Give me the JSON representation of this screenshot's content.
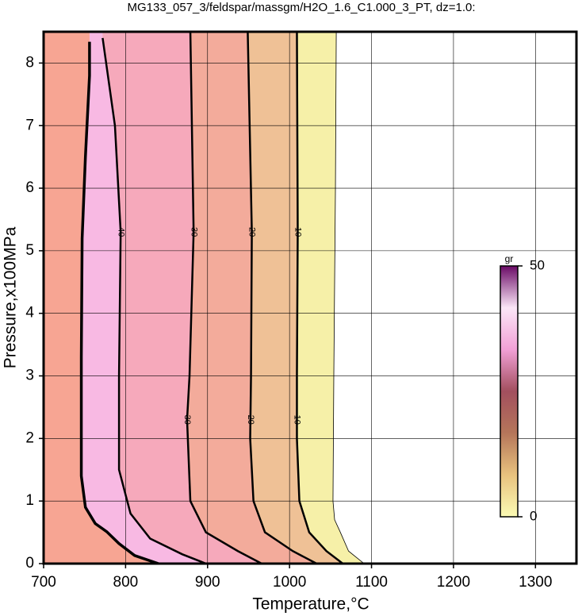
{
  "chart_data": {
    "type": "contour",
    "title": "MG133_057_3/feldspar/massgm/H2O_1.6_C1.000_3_PT, dz=1.0:",
    "xlabel": "Temperature,°C",
    "ylabel": "Pressure,x100MPa",
    "xlim": [
      700,
      1350
    ],
    "ylim": [
      0,
      8.5
    ],
    "xticks": [
      700,
      800,
      900,
      1000,
      1100,
      1200,
      1300
    ],
    "yticks": [
      0,
      1,
      2,
      3,
      4,
      5,
      6,
      7,
      8
    ],
    "grid": true,
    "background_color": "#f7a593",
    "contours": [
      {
        "level": 0,
        "color": "#f6f0a8",
        "x": [
          1057,
          1056,
          1054,
          1053,
          1055,
          1062,
          1072,
          1091
        ],
        "y": [
          8.5,
          6,
          3,
          1,
          0.7,
          0.5,
          0.2,
          0
        ]
      },
      {
        "level": 10,
        "color": "#efc196",
        "x": [
          1009,
          1010,
          1009,
          1009,
          1012,
          1024,
          1045,
          1065
        ],
        "y": [
          8.5,
          5.3,
          3,
          2,
          1,
          0.5,
          0.2,
          0
        ]
      },
      {
        "level": 20,
        "color": "#f3ab9b",
        "x": [
          949,
          954,
          953,
          952,
          956,
          970,
          1004,
          1033
        ],
        "y": [
          8.5,
          5.3,
          3,
          2,
          1,
          0.5,
          0.2,
          0
        ]
      },
      {
        "level": 30,
        "color": "#f6a9bb",
        "x": [
          879,
          883,
          878,
          875,
          879,
          898,
          937,
          966
        ],
        "y": [
          8.5,
          5.3,
          3,
          2.3,
          1,
          0.5,
          0.2,
          0
        ]
      },
      {
        "level": 40,
        "color": "#f8b9e3",
        "x": [
          772,
          787,
          794,
          792,
          792,
          806,
          830,
          869,
          898
        ],
        "y": [
          8.4,
          7,
          5.3,
          3,
          1.5,
          0.8,
          0.4,
          0.15,
          0
        ]
      },
      {
        "level": 50,
        "color": "#f7a593",
        "x": [
          756,
          756,
          751,
          747,
          746,
          746,
          751,
          763,
          777,
          792,
          811,
          840
        ],
        "y": [
          8.34,
          7.8,
          6.5,
          5.2,
          3.3,
          1.4,
          0.9,
          0.64,
          0.51,
          0.32,
          0.13,
          0
        ]
      }
    ],
    "colorbar": {
      "label": "gr",
      "lim": [
        0,
        50
      ],
      "ticks": [
        0,
        50
      ],
      "colors": [
        "#fbfbb4",
        "#e8c27e",
        "#b5765a",
        "#a24f5e",
        "#f2a0d6",
        "#fbe6f7",
        "#6a0a66"
      ]
    }
  }
}
